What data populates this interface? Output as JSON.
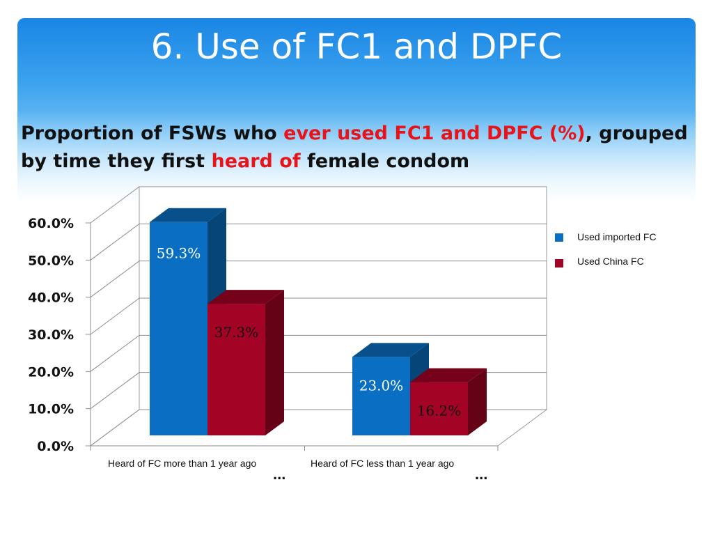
{
  "slide": {
    "title": "6. Use of FC1 and DPFC",
    "subtitle": [
      {
        "text": "Proportion of FSWs who ",
        "red": false
      },
      {
        "text": "ever used FC1 and DPFC (%)",
        "red": true
      },
      {
        "text": ", grouped by time they first ",
        "red": false
      },
      {
        "text": "heard of",
        "red": true
      },
      {
        "text": " female condom",
        "red": false
      }
    ]
  },
  "chart_data": {
    "type": "bar",
    "categories": [
      "Heard of FC more than 1 year ago",
      "Heard of FC less than 1 year ago"
    ],
    "series": [
      {
        "name": "Used imported FC",
        "values": [
          59.3,
          23.0
        ],
        "labels": [
          "59.3%",
          "23.0%"
        ],
        "color": "#0a6fc2"
      },
      {
        "name": "Used China FC",
        "values": [
          37.3,
          16.2
        ],
        "labels": [
          "37.3%",
          "16.2%"
        ],
        "color": "#a30324"
      }
    ],
    "ylim": [
      0,
      60
    ],
    "yticks": [
      "0.0%",
      "10.0%",
      "20.0%",
      "30.0%",
      "40.0%",
      "50.0%",
      "60.0%"
    ],
    "grid": true,
    "legend": "right",
    "three_d": true,
    "ellipsis": [
      "...",
      "..."
    ]
  }
}
